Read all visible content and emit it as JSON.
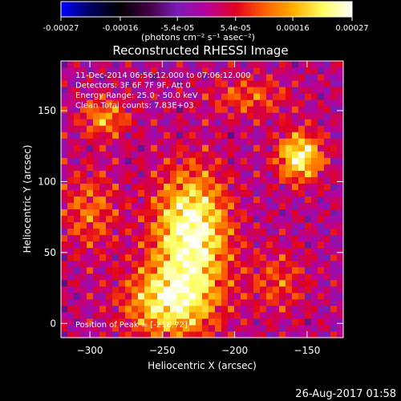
{
  "colorbar": {
    "tick_labels": [
      "-0.00027",
      "-0.00016",
      "-5.4e-05",
      "5.4e-05",
      "0.00016",
      "0.00027"
    ],
    "tick_values": [
      -0.00027,
      -0.00016,
      -5.4e-05,
      5.4e-05,
      0.00016,
      0.00027
    ],
    "range": [
      -0.00027,
      0.00027
    ],
    "unit_label": "(photons cm⁻² s⁻¹ asec⁻²)"
  },
  "chart_data": {
    "type": "heatmap",
    "title": "Reconstructed RHESSI Image",
    "xlabel": "Heliocentric X (arcsec)",
    "ylabel": "Heliocentric Y (arcsec)",
    "xlim": [
      -320,
      -125
    ],
    "ylim": [
      -10,
      185
    ],
    "xticks": [
      -300,
      -250,
      -200,
      -150
    ],
    "yticks": [
      0,
      50,
      100,
      150
    ],
    "annotations": [
      "11-Dec-2014 06:56:12.000 to 07:06:12.000",
      "Detectors: 3F 6F 7F 9F, Att 0",
      "Energy Range: 25.0 - 50.0 keV",
      "Clean     Total counts: 7.83E+03"
    ],
    "peak_label": "Position of Peak = [-218,72]",
    "peak": [
      -218,
      72
    ],
    "sources": [
      {
        "x": -230,
        "y": 65,
        "sx": 18,
        "sy": 30,
        "amp": 0.00027
      },
      {
        "x": -245,
        "y": 15,
        "sx": 22,
        "sy": 18,
        "amp": 0.00021
      },
      {
        "x": -155,
        "y": 118,
        "sx": 11,
        "sy": 12,
        "amp": 0.00024
      },
      {
        "x": -290,
        "y": 145,
        "sx": 12,
        "sy": 10,
        "amp": 0.00014
      },
      {
        "x": -300,
        "y": 80,
        "sx": 14,
        "sy": 20,
        "amp": 0.00011
      },
      {
        "x": -190,
        "y": 160,
        "sx": 20,
        "sy": 10,
        "amp": 0.0001
      },
      {
        "x": -170,
        "y": 30,
        "sx": 14,
        "sy": 16,
        "amp": 9e-05
      }
    ],
    "colormap": [
      "#0000ff",
      "#000060",
      "#000000",
      "#400040",
      "#7a1cb8",
      "#b8009a",
      "#e00020",
      "#ff6000",
      "#ffb000",
      "#ffff60",
      "#ffffff"
    ]
  },
  "footer": {
    "timestamp": "26-Aug-2017 01:58"
  }
}
